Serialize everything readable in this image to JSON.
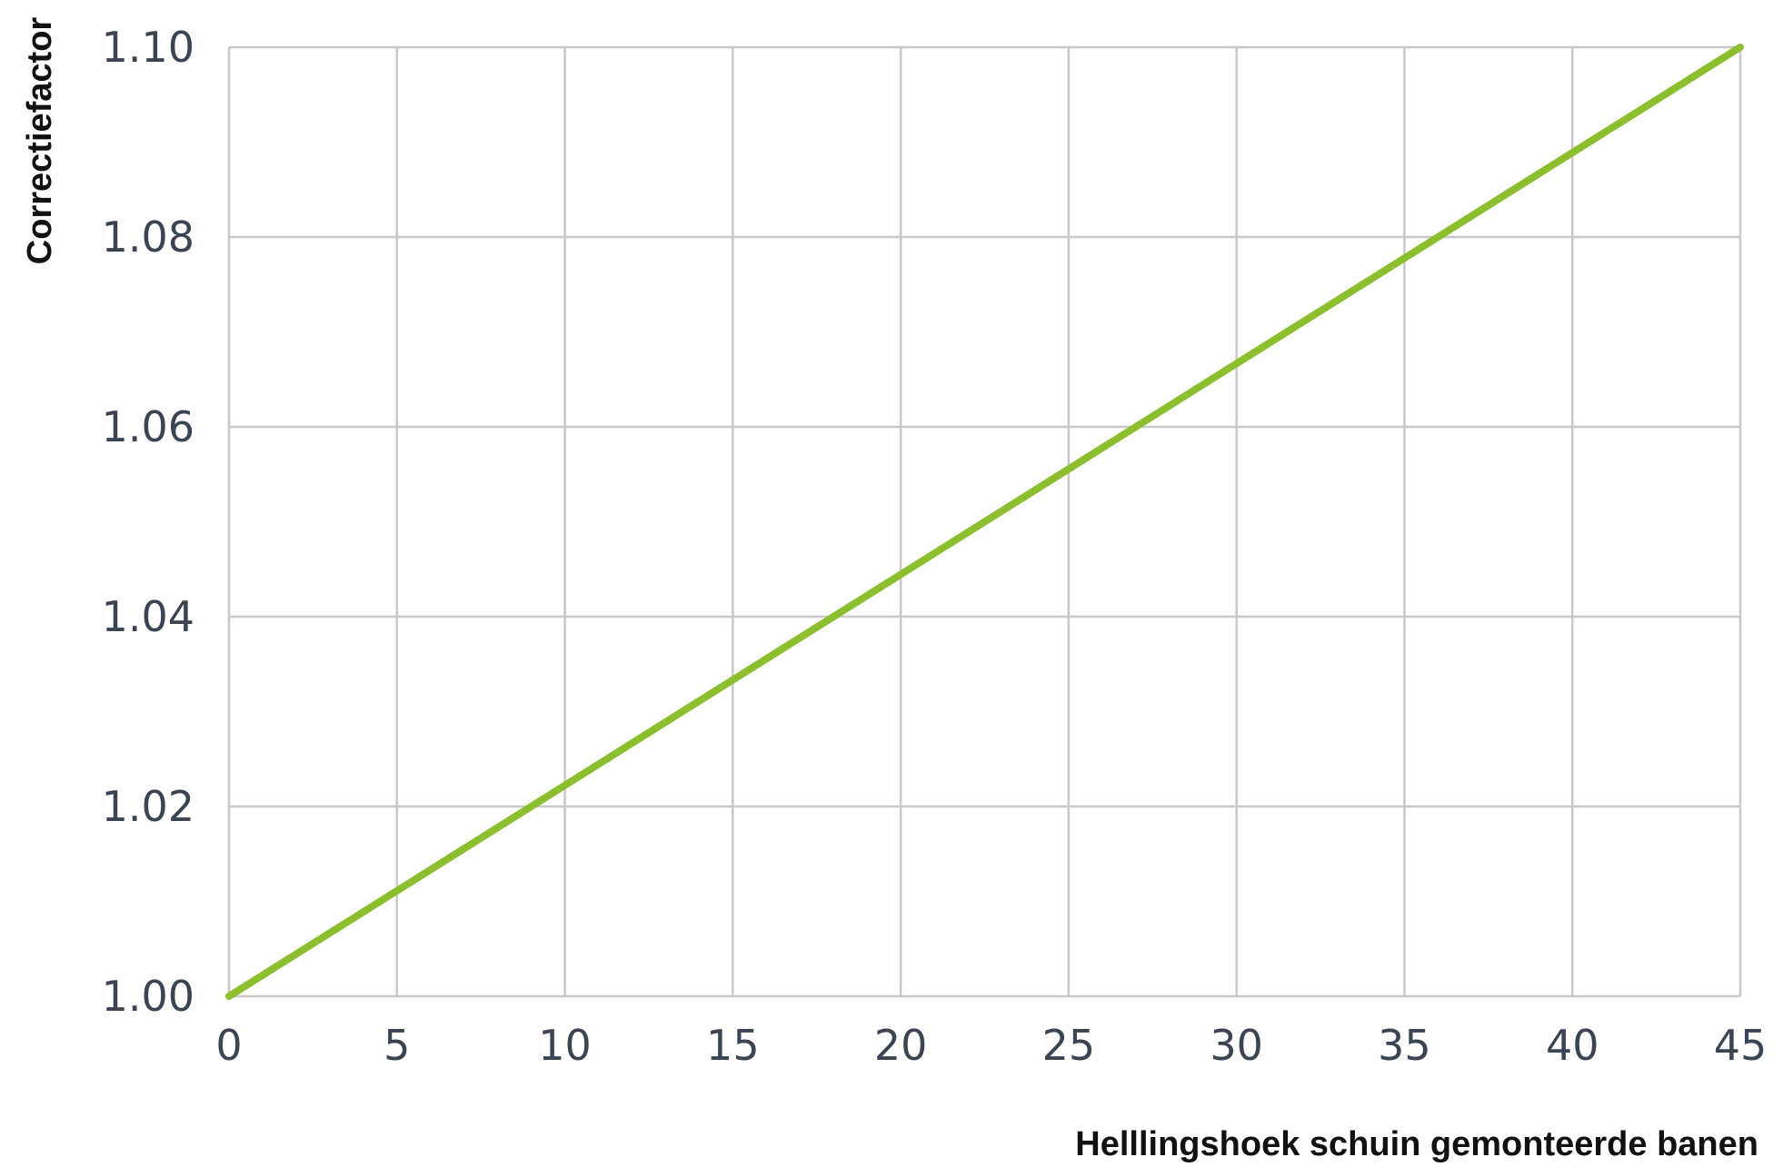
{
  "chart_data": {
    "type": "line",
    "xlabel": "Helllingshoek schuin gemonteerde banen",
    "ylabel": "Correctiefactor",
    "xlim": [
      0,
      45
    ],
    "ylim": [
      1.0,
      1.1
    ],
    "x_ticks": [
      "0",
      "5",
      "10",
      "15",
      "20",
      "25",
      "30",
      "35",
      "40",
      "45"
    ],
    "y_ticks": [
      "1.00",
      "1.02",
      "1.04",
      "1.06",
      "1.08",
      "1.10"
    ],
    "grid": true,
    "series": [
      {
        "x": [
          0,
          45
        ],
        "y": [
          1.0,
          1.1
        ],
        "color": "#8cbf2e"
      }
    ]
  }
}
